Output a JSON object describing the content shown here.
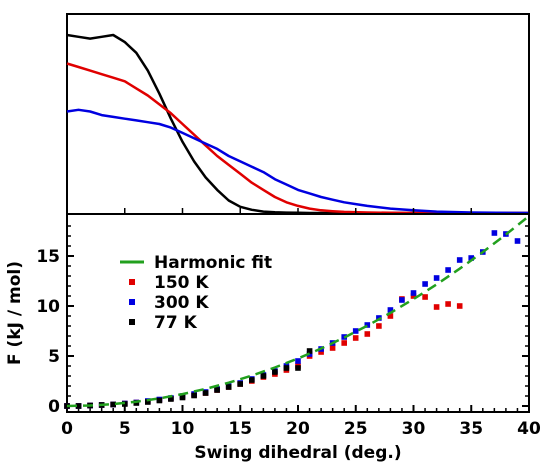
{
  "chart_data": [
    {
      "type": "line",
      "panel": "top",
      "title": "",
      "xlabel": "",
      "ylabel": "",
      "xlim": [
        0,
        40
      ],
      "y_ticks_visible": false,
      "series": [
        {
          "color": "#000000",
          "x": [
            0,
            1,
            2,
            3,
            4,
            5,
            6,
            7,
            8,
            9,
            10,
            11,
            12,
            13,
            14,
            15,
            16,
            17,
            18,
            19,
            20,
            21,
            22,
            24,
            26,
            28,
            30,
            35,
            40
          ],
          "y": [
            1.0,
            0.99,
            0.98,
            0.99,
            1.0,
            0.96,
            0.9,
            0.8,
            0.67,
            0.53,
            0.4,
            0.29,
            0.2,
            0.13,
            0.07,
            0.035,
            0.018,
            0.008,
            0.004,
            0.002,
            0.001,
            0,
            0,
            0,
            0,
            0,
            0,
            0,
            0
          ]
        },
        {
          "color": "#e00000",
          "x": [
            0,
            1,
            2,
            3,
            4,
            5,
            6,
            7,
            8,
            9,
            10,
            11,
            12,
            13,
            14,
            15,
            16,
            17,
            18,
            19,
            20,
            21,
            22,
            23,
            24,
            26,
            28,
            30,
            35,
            40
          ],
          "y": [
            0.84,
            0.82,
            0.8,
            0.78,
            0.76,
            0.74,
            0.7,
            0.66,
            0.61,
            0.56,
            0.5,
            0.44,
            0.38,
            0.32,
            0.27,
            0.22,
            0.17,
            0.13,
            0.09,
            0.06,
            0.04,
            0.025,
            0.015,
            0.01,
            0.006,
            0.003,
            0.001,
            0,
            0,
            0
          ]
        },
        {
          "color": "#0000e0",
          "x": [
            0,
            1,
            2,
            3,
            4,
            5,
            6,
            7,
            8,
            9,
            10,
            11,
            12,
            13,
            14,
            15,
            16,
            17,
            18,
            19,
            20,
            21,
            22,
            23,
            24,
            25,
            26,
            28,
            30,
            32,
            35,
            40
          ],
          "y": [
            0.57,
            0.58,
            0.57,
            0.55,
            0.54,
            0.53,
            0.52,
            0.51,
            0.5,
            0.48,
            0.45,
            0.42,
            0.39,
            0.36,
            0.32,
            0.29,
            0.26,
            0.23,
            0.19,
            0.16,
            0.13,
            0.11,
            0.09,
            0.075,
            0.06,
            0.05,
            0.04,
            0.025,
            0.015,
            0.008,
            0.003,
            0
          ]
        }
      ]
    },
    {
      "type": "scatter",
      "panel": "bottom",
      "title": "",
      "xlabel": "Swing dihedral (deg.)",
      "ylabel": "F (kJ / mol)",
      "xlim": [
        0,
        40
      ],
      "ylim": [
        -0.6,
        19.2
      ],
      "xticks": [
        0,
        5,
        10,
        15,
        20,
        25,
        30,
        35,
        40
      ],
      "yticks": [
        0,
        5,
        10,
        15
      ],
      "legend_position": "upper-left",
      "series": [
        {
          "name": "Harmonic fit",
          "kind": "line",
          "dashed": true,
          "color": "#22a01e",
          "x": [
            0,
            2,
            4,
            6,
            8,
            10,
            12,
            14,
            16,
            18,
            20,
            22,
            24,
            26,
            28,
            30,
            32,
            34,
            36,
            38,
            40
          ],
          "y": [
            0.0,
            0.05,
            0.19,
            0.43,
            0.76,
            1.19,
            1.71,
            2.33,
            3.04,
            3.85,
            4.75,
            5.75,
            6.84,
            8.03,
            9.31,
            10.69,
            12.16,
            13.73,
            15.39,
            17.15,
            19.0
          ]
        },
        {
          "name": "150 K",
          "kind": "points",
          "color": "#e00000",
          "x": [
            0,
            1,
            2,
            3,
            4,
            5,
            6,
            7,
            8,
            9,
            10,
            11,
            12,
            13,
            14,
            15,
            16,
            17,
            18,
            19,
            20,
            21,
            22,
            23,
            24,
            25,
            26,
            27,
            28,
            29,
            30,
            31,
            32,
            33,
            34
          ],
          "y": [
            0.0,
            0.0,
            0.05,
            0.1,
            0.15,
            0.25,
            0.35,
            0.45,
            0.6,
            0.75,
            0.9,
            1.1,
            1.3,
            1.6,
            1.9,
            2.2,
            2.5,
            2.9,
            3.2,
            3.6,
            4.0,
            5.0,
            5.4,
            5.8,
            6.3,
            6.8,
            7.2,
            8.0,
            9.0,
            10.7,
            11.0,
            10.9,
            9.9,
            10.2,
            10.0
          ]
        },
        {
          "name": "300 K",
          "kind": "points",
          "color": "#0000e0",
          "x": [
            0,
            1,
            2,
            3,
            4,
            5,
            6,
            7,
            8,
            9,
            10,
            11,
            12,
            13,
            14,
            15,
            16,
            17,
            18,
            19,
            20,
            21,
            22,
            23,
            24,
            25,
            26,
            27,
            28,
            29,
            30,
            31,
            32,
            33,
            34,
            35,
            36,
            37,
            38,
            39
          ],
          "y": [
            0.0,
            0.0,
            0.05,
            0.1,
            0.15,
            0.25,
            0.35,
            0.5,
            0.65,
            0.8,
            1.0,
            1.2,
            1.4,
            1.7,
            2.0,
            2.3,
            2.7,
            3.1,
            3.5,
            4.0,
            4.5,
            5.2,
            5.7,
            6.3,
            6.9,
            7.5,
            8.1,
            8.8,
            9.6,
            10.6,
            11.3,
            12.2,
            12.8,
            13.6,
            14.6,
            14.8,
            15.4,
            17.3,
            17.2,
            16.5
          ]
        },
        {
          "name": "77 K",
          "kind": "points",
          "color": "#000000",
          "x": [
            0,
            1,
            2,
            3,
            4,
            5,
            6,
            7,
            8,
            9,
            10,
            11,
            12,
            13,
            14,
            15,
            16,
            17,
            18,
            19,
            20,
            21
          ],
          "y": [
            0.0,
            0.0,
            0.05,
            0.1,
            0.15,
            0.2,
            0.3,
            0.4,
            0.55,
            0.7,
            0.85,
            1.05,
            1.3,
            1.6,
            1.9,
            2.2,
            2.6,
            3.0,
            3.4,
            3.8,
            3.8,
            5.5
          ]
        }
      ]
    }
  ]
}
